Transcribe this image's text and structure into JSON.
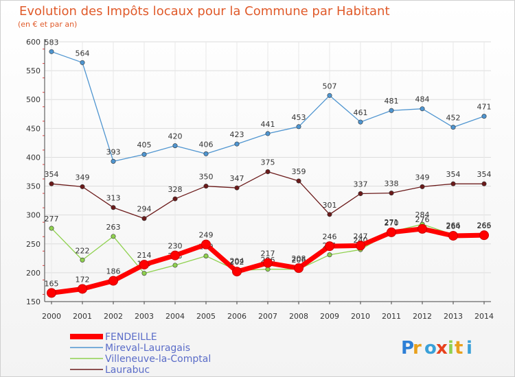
{
  "chart_data": {
    "type": "line",
    "title": "Evolution des Impôts locaux pour la Commune par Habitant",
    "subtitle": "(en € et par an)",
    "x": [
      "2000",
      "2001",
      "2002",
      "2003",
      "2004",
      "2005",
      "2006",
      "2007",
      "2008",
      "2009",
      "2010",
      "2011",
      "2012",
      "2013",
      "2014"
    ],
    "ylim": [
      150,
      600
    ],
    "yticks": [
      150,
      200,
      250,
      300,
      350,
      400,
      450,
      500,
      550,
      600
    ],
    "grid": true,
    "legend_position": "bottom-left",
    "series": [
      {
        "name": "FENDEILLE",
        "color": "#ff0000",
        "values": [
          165,
          172,
          186,
          214,
          230,
          249,
          202,
          217,
          208,
          246,
          247,
          270,
          276,
          264,
          265
        ]
      },
      {
        "name": "Mireval-Lauragais",
        "color": "#4f95d0",
        "values": [
          583,
          564,
          393,
          405,
          420,
          406,
          423,
          441,
          453,
          507,
          461,
          481,
          484,
          452,
          471
        ]
      },
      {
        "name": "Villeneuve-la-Comptal",
        "color": "#8fd14f",
        "values": [
          277,
          222,
          263,
          199,
          213,
          229,
          204,
          206,
          206,
          231,
          240,
          271,
          284,
          266,
          266
        ]
      },
      {
        "name": "Laurabuc",
        "color": "#6b1a1a",
        "values": [
          354,
          349,
          313,
          294,
          328,
          350,
          347,
          375,
          359,
          301,
          337,
          338,
          349,
          354,
          354
        ]
      }
    ]
  },
  "logo": {
    "text": "Proxiti"
  }
}
